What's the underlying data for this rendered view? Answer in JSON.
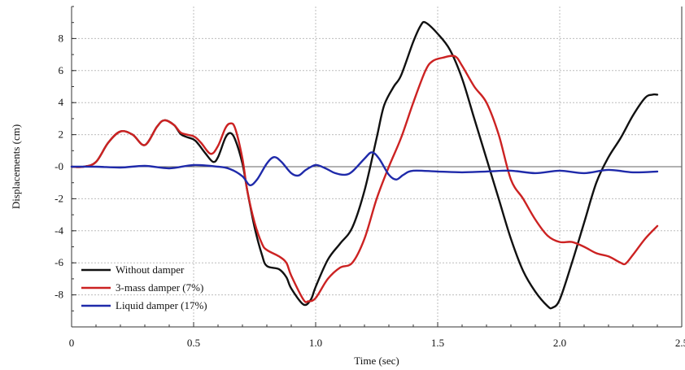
{
  "chart_data": {
    "type": "line",
    "title": "",
    "xlabel": "Time (sec)",
    "ylabel": "Displacements (cm)",
    "xlim": [
      0,
      2.5
    ],
    "ylim": [
      -10,
      10
    ],
    "x_ticks": [
      0,
      0.5,
      1.0,
      1.5,
      2.0,
      2.5
    ],
    "x_tick_labels": [
      "0",
      "0.5",
      "1.0",
      "1.5",
      "2.0",
      "2.5"
    ],
    "y_ticks": [
      -8,
      -6,
      -4,
      -2,
      0,
      2,
      4,
      6,
      8
    ],
    "y_tick_labels": [
      "-8",
      "-6",
      "-4",
      "-2",
      "-0",
      "2",
      "4",
      "6",
      "8"
    ],
    "grid": true,
    "legend_position": "bottom-left",
    "series": [
      {
        "name": "Without damper",
        "color": "#111111",
        "points": [
          [
            0,
            0
          ],
          [
            0.05,
            0
          ],
          [
            0.1,
            0.3
          ],
          [
            0.15,
            1.5
          ],
          [
            0.2,
            2.2
          ],
          [
            0.25,
            2.0
          ],
          [
            0.3,
            1.35
          ],
          [
            0.35,
            2.5
          ],
          [
            0.38,
            2.9
          ],
          [
            0.42,
            2.6
          ],
          [
            0.45,
            2.0
          ],
          [
            0.5,
            1.7
          ],
          [
            0.52,
            1.4
          ],
          [
            0.55,
            0.8
          ],
          [
            0.58,
            0.3
          ],
          [
            0.6,
            0.6
          ],
          [
            0.63,
            1.8
          ],
          [
            0.65,
            2.1
          ],
          [
            0.67,
            1.7
          ],
          [
            0.7,
            0.2
          ],
          [
            0.72,
            -1.5
          ],
          [
            0.75,
            -3.8
          ],
          [
            0.78,
            -5.5
          ],
          [
            0.8,
            -6.2
          ],
          [
            0.85,
            -6.4
          ],
          [
            0.88,
            -6.9
          ],
          [
            0.9,
            -7.6
          ],
          [
            0.95,
            -8.6
          ],
          [
            0.98,
            -8.3
          ],
          [
            1.0,
            -7.5
          ],
          [
            1.05,
            -5.8
          ],
          [
            1.1,
            -4.8
          ],
          [
            1.15,
            -3.8
          ],
          [
            1.2,
            -1.5
          ],
          [
            1.25,
            1.8
          ],
          [
            1.28,
            3.8
          ],
          [
            1.32,
            5.0
          ],
          [
            1.35,
            5.7
          ],
          [
            1.4,
            7.8
          ],
          [
            1.43,
            8.8
          ],
          [
            1.45,
            9.0
          ],
          [
            1.5,
            8.3
          ],
          [
            1.55,
            7.3
          ],
          [
            1.6,
            5.5
          ],
          [
            1.65,
            3.0
          ],
          [
            1.7,
            0.5
          ],
          [
            1.75,
            -2.0
          ],
          [
            1.8,
            -4.5
          ],
          [
            1.85,
            -6.5
          ],
          [
            1.9,
            -7.8
          ],
          [
            1.95,
            -8.7
          ],
          [
            1.97,
            -8.8
          ],
          [
            2.0,
            -8.3
          ],
          [
            2.05,
            -6.0
          ],
          [
            2.1,
            -3.5
          ],
          [
            2.15,
            -1.0
          ],
          [
            2.2,
            0.6
          ],
          [
            2.25,
            1.8
          ],
          [
            2.3,
            3.2
          ],
          [
            2.35,
            4.3
          ],
          [
            2.38,
            4.5
          ],
          [
            2.4,
            4.5
          ]
        ]
      },
      {
        "name": "3-mass damper (7%)",
        "color": "#cc2222",
        "points": [
          [
            0,
            0
          ],
          [
            0.05,
            0
          ],
          [
            0.1,
            0.3
          ],
          [
            0.15,
            1.5
          ],
          [
            0.2,
            2.2
          ],
          [
            0.25,
            2.0
          ],
          [
            0.3,
            1.35
          ],
          [
            0.35,
            2.5
          ],
          [
            0.38,
            2.9
          ],
          [
            0.42,
            2.6
          ],
          [
            0.45,
            2.1
          ],
          [
            0.5,
            1.9
          ],
          [
            0.53,
            1.5
          ],
          [
            0.57,
            0.8
          ],
          [
            0.6,
            1.3
          ],
          [
            0.63,
            2.4
          ],
          [
            0.65,
            2.7
          ],
          [
            0.67,
            2.4
          ],
          [
            0.7,
            0.5
          ],
          [
            0.72,
            -1.5
          ],
          [
            0.75,
            -3.5
          ],
          [
            0.78,
            -4.8
          ],
          [
            0.8,
            -5.2
          ],
          [
            0.85,
            -5.6
          ],
          [
            0.88,
            -6.0
          ],
          [
            0.9,
            -6.8
          ],
          [
            0.95,
            -8.3
          ],
          [
            0.97,
            -8.4
          ],
          [
            1.0,
            -8.2
          ],
          [
            1.05,
            -7.0
          ],
          [
            1.1,
            -6.3
          ],
          [
            1.15,
            -6.0
          ],
          [
            1.2,
            -4.5
          ],
          [
            1.25,
            -2.0
          ],
          [
            1.3,
            0.0
          ],
          [
            1.35,
            1.8
          ],
          [
            1.4,
            4.0
          ],
          [
            1.45,
            6.0
          ],
          [
            1.48,
            6.6
          ],
          [
            1.52,
            6.8
          ],
          [
            1.57,
            6.9
          ],
          [
            1.6,
            6.3
          ],
          [
            1.65,
            5.0
          ],
          [
            1.7,
            4.0
          ],
          [
            1.75,
            2.0
          ],
          [
            1.8,
            -0.8
          ],
          [
            1.85,
            -2.0
          ],
          [
            1.9,
            -3.3
          ],
          [
            1.95,
            -4.3
          ],
          [
            2.0,
            -4.7
          ],
          [
            2.05,
            -4.7
          ],
          [
            2.1,
            -5.0
          ],
          [
            2.15,
            -5.4
          ],
          [
            2.2,
            -5.6
          ],
          [
            2.25,
            -6.0
          ],
          [
            2.27,
            -6.05
          ],
          [
            2.3,
            -5.5
          ],
          [
            2.35,
            -4.5
          ],
          [
            2.4,
            -3.7
          ]
        ]
      },
      {
        "name": "Liquid damper (17%)",
        "color": "#1f2aaa",
        "points": [
          [
            0,
            0
          ],
          [
            0.1,
            0
          ],
          [
            0.2,
            -0.05
          ],
          [
            0.3,
            0.05
          ],
          [
            0.4,
            -0.1
          ],
          [
            0.5,
            0.1
          ],
          [
            0.6,
            0
          ],
          [
            0.65,
            -0.15
          ],
          [
            0.7,
            -0.6
          ],
          [
            0.73,
            -1.15
          ],
          [
            0.76,
            -0.8
          ],
          [
            0.8,
            0.2
          ],
          [
            0.83,
            0.6
          ],
          [
            0.86,
            0.3
          ],
          [
            0.9,
            -0.4
          ],
          [
            0.93,
            -0.55
          ],
          [
            0.96,
            -0.2
          ],
          [
            1.0,
            0.1
          ],
          [
            1.04,
            -0.1
          ],
          [
            1.08,
            -0.4
          ],
          [
            1.12,
            -0.5
          ],
          [
            1.15,
            -0.3
          ],
          [
            1.2,
            0.5
          ],
          [
            1.23,
            0.9
          ],
          [
            1.26,
            0.5
          ],
          [
            1.3,
            -0.5
          ],
          [
            1.33,
            -0.8
          ],
          [
            1.36,
            -0.5
          ],
          [
            1.4,
            -0.25
          ],
          [
            1.5,
            -0.3
          ],
          [
            1.6,
            -0.35
          ],
          [
            1.7,
            -0.3
          ],
          [
            1.8,
            -0.25
          ],
          [
            1.9,
            -0.4
          ],
          [
            2.0,
            -0.25
          ],
          [
            2.1,
            -0.4
          ],
          [
            2.2,
            -0.2
          ],
          [
            2.3,
            -0.35
          ],
          [
            2.4,
            -0.3
          ]
        ]
      }
    ]
  }
}
